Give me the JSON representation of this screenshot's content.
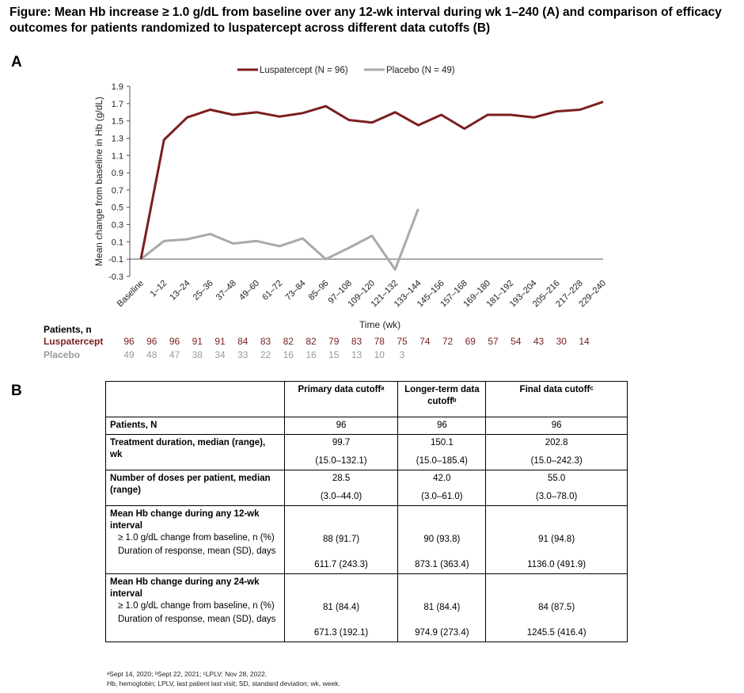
{
  "figure_title": "Figure: Mean Hb increase ≥ 1.0 g/dL from baseline over any 12-wk interval during wk 1–240 (A) and comparison of efficacy outcomes for patients randomized to luspatercept across different data cutoffs (B)",
  "panel_a_label": "A",
  "panel_b_label": "B",
  "colors": {
    "luspatercept": "#7b1e1e",
    "placebo": "#a9a9a9"
  },
  "chart_data": {
    "type": "line",
    "x": [
      "Baseline",
      "1–12",
      "13–24",
      "25–36",
      "37–48",
      "49–60",
      "61–72",
      "73–84",
      "85–96",
      "97–108",
      "109–120",
      "121–132",
      "133–144",
      "145–156",
      "157–168",
      "169–180",
      "181–192",
      "193–204",
      "205–216",
      "217–228",
      "229–240"
    ],
    "series": [
      {
        "name": "Luspatercept (N = 96)",
        "values": [
          -0.1,
          1.28,
          1.54,
          1.63,
          1.57,
          1.6,
          1.55,
          1.59,
          1.67,
          1.51,
          1.48,
          1.6,
          1.45,
          1.57,
          1.41,
          1.57,
          1.57,
          1.54,
          1.61,
          1.63,
          1.72
        ]
      },
      {
        "name": "Placebo (N = 49)",
        "values": [
          -0.1,
          0.11,
          0.13,
          0.19,
          0.08,
          0.11,
          0.05,
          0.14,
          -0.1,
          0.03,
          0.17,
          -0.22,
          0.48,
          null,
          null,
          null,
          null,
          null,
          null,
          null,
          null
        ]
      }
    ],
    "xlabel": "Time (wk)",
    "ylabel": "Mean change from baseline in Hb (g/dL)",
    "ylim": [
      -0.3,
      1.9
    ],
    "yticks": [
      "1.9",
      "1.7",
      "1.5",
      "1.3",
      "1.1",
      "0.9",
      "0.7",
      "0.5",
      "0.3",
      "0.1",
      "-0.1",
      "-0.3"
    ],
    "legend_position": "top",
    "grid": false
  },
  "patients_table": {
    "header": "Patients, n",
    "rows": [
      {
        "label": "Luspatercept",
        "values": [
          "96",
          "96",
          "96",
          "91",
          "91",
          "84",
          "83",
          "82",
          "82",
          "79",
          "83",
          "78",
          "75",
          "74",
          "72",
          "69",
          "57",
          "54",
          "43",
          "30",
          "14"
        ]
      },
      {
        "label": "Placebo",
        "values": [
          "49",
          "48",
          "47",
          "38",
          "34",
          "33",
          "22",
          "16",
          "16",
          "15",
          "13",
          "10",
          "3"
        ]
      }
    ]
  },
  "efficacy_table": {
    "headers": [
      "Primary data cutoffᵃ",
      "Longer-term data cutoffᵇ",
      "Final data cutoffᶜ"
    ],
    "rows": [
      {
        "label": "Patients, N",
        "values": [
          "96",
          "96",
          "96"
        ]
      },
      {
        "label": "Treatment duration, median (range), wk",
        "values": [
          "99.7",
          "150.1",
          "202.8"
        ],
        "ranges": [
          "(15.0–132.1)",
          "(15.0–185.4)",
          "(15.0–242.3)"
        ]
      },
      {
        "label": "Number of doses per patient, median (range)",
        "values": [
          "28.5",
          "42.0",
          "55.0"
        ],
        "ranges": [
          "(3.0–44.0)",
          "(3.0–61.0)",
          "(3.0–78.0)"
        ]
      },
      {
        "section": "Mean Hb change during any 12-wk interval",
        "sub": [
          {
            "label": "≥ 1.0 g/dL change from baseline, n (%)",
            "values": [
              "88 (91.7)",
              "90 (93.8)",
              "91 (94.8)"
            ]
          },
          {
            "label": "Duration of response, mean (SD), days",
            "values": [
              "611.7 (243.3)",
              "873.1 (363.4)",
              "1136.0 (491.9)"
            ]
          }
        ]
      },
      {
        "section": "Mean Hb change during any 24-wk interval",
        "sub": [
          {
            "label": "≥ 1.0 g/dL change from baseline, n (%)",
            "values": [
              "81 (84.4)",
              "81 (84.4)",
              "84 (87.5)"
            ]
          },
          {
            "label": "Duration of response, mean (SD), days",
            "values": [
              "671.3 (192.1)",
              "974.9 (273.4)",
              "1245.5 (416.4)"
            ]
          }
        ]
      }
    ]
  },
  "footnotes": [
    "ᵃSept 14, 2020; ᵇSept 22, 2021; ᶜLPLV: Nov 28, 2022.",
    "Hb, hemoglobin; LPLV, last patient last visit; SD, standard deviation; wk, week."
  ]
}
